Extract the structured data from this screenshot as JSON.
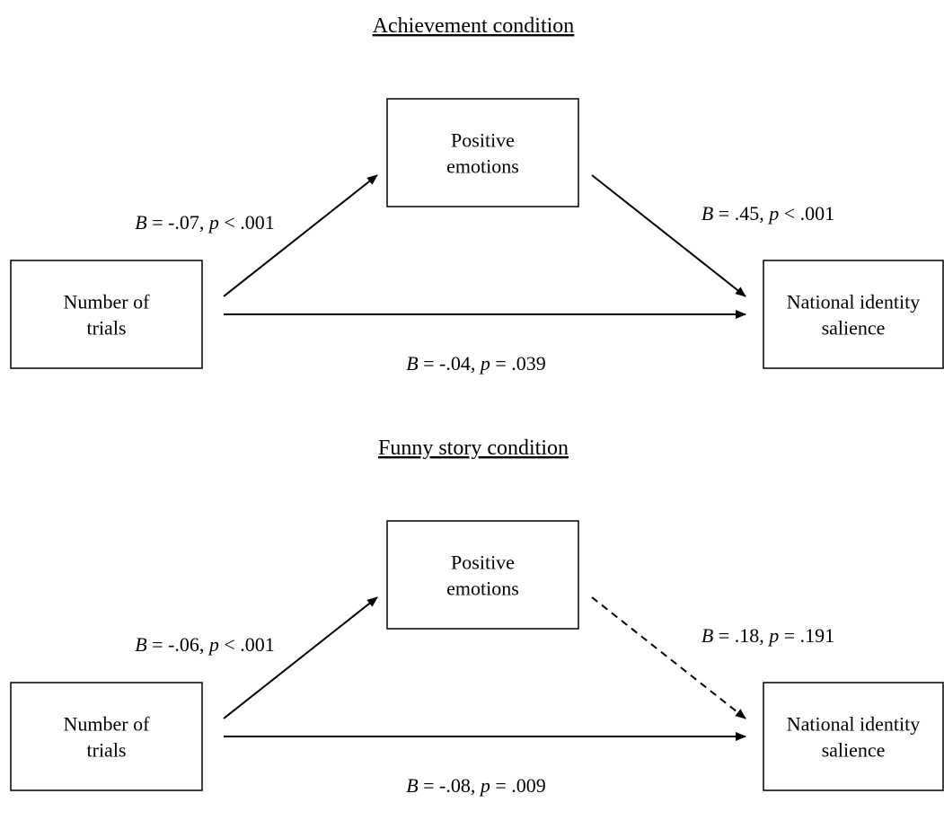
{
  "panels": [
    {
      "title": "Achievement condition",
      "nodes": [
        {
          "lines": [
            "Positive",
            "emotions"
          ]
        },
        {
          "lines": [
            "Number of",
            "trials"
          ]
        },
        {
          "lines": [
            "National identity",
            "salience"
          ]
        }
      ],
      "edges": [
        {
          "label": "B = -.07, p < .001",
          "style": "solid"
        },
        {
          "label": "B = .45, p < .001",
          "style": "solid"
        },
        {
          "label": "B = -.04, p = .039",
          "style": "solid"
        }
      ]
    },
    {
      "title": "Funny story condition",
      "nodes": [
        {
          "lines": [
            "Positive",
            "emotions"
          ]
        },
        {
          "lines": [
            "Number of",
            "trials"
          ]
        },
        {
          "lines": [
            "National identity",
            "salience"
          ]
        }
      ],
      "edges": [
        {
          "label": "B = -.06, p < .001",
          "style": "solid"
        },
        {
          "label": "B = .18, p = .191",
          "style": "dashed"
        },
        {
          "label": "B = -.08, p = .009",
          "style": "solid"
        }
      ]
    }
  ]
}
